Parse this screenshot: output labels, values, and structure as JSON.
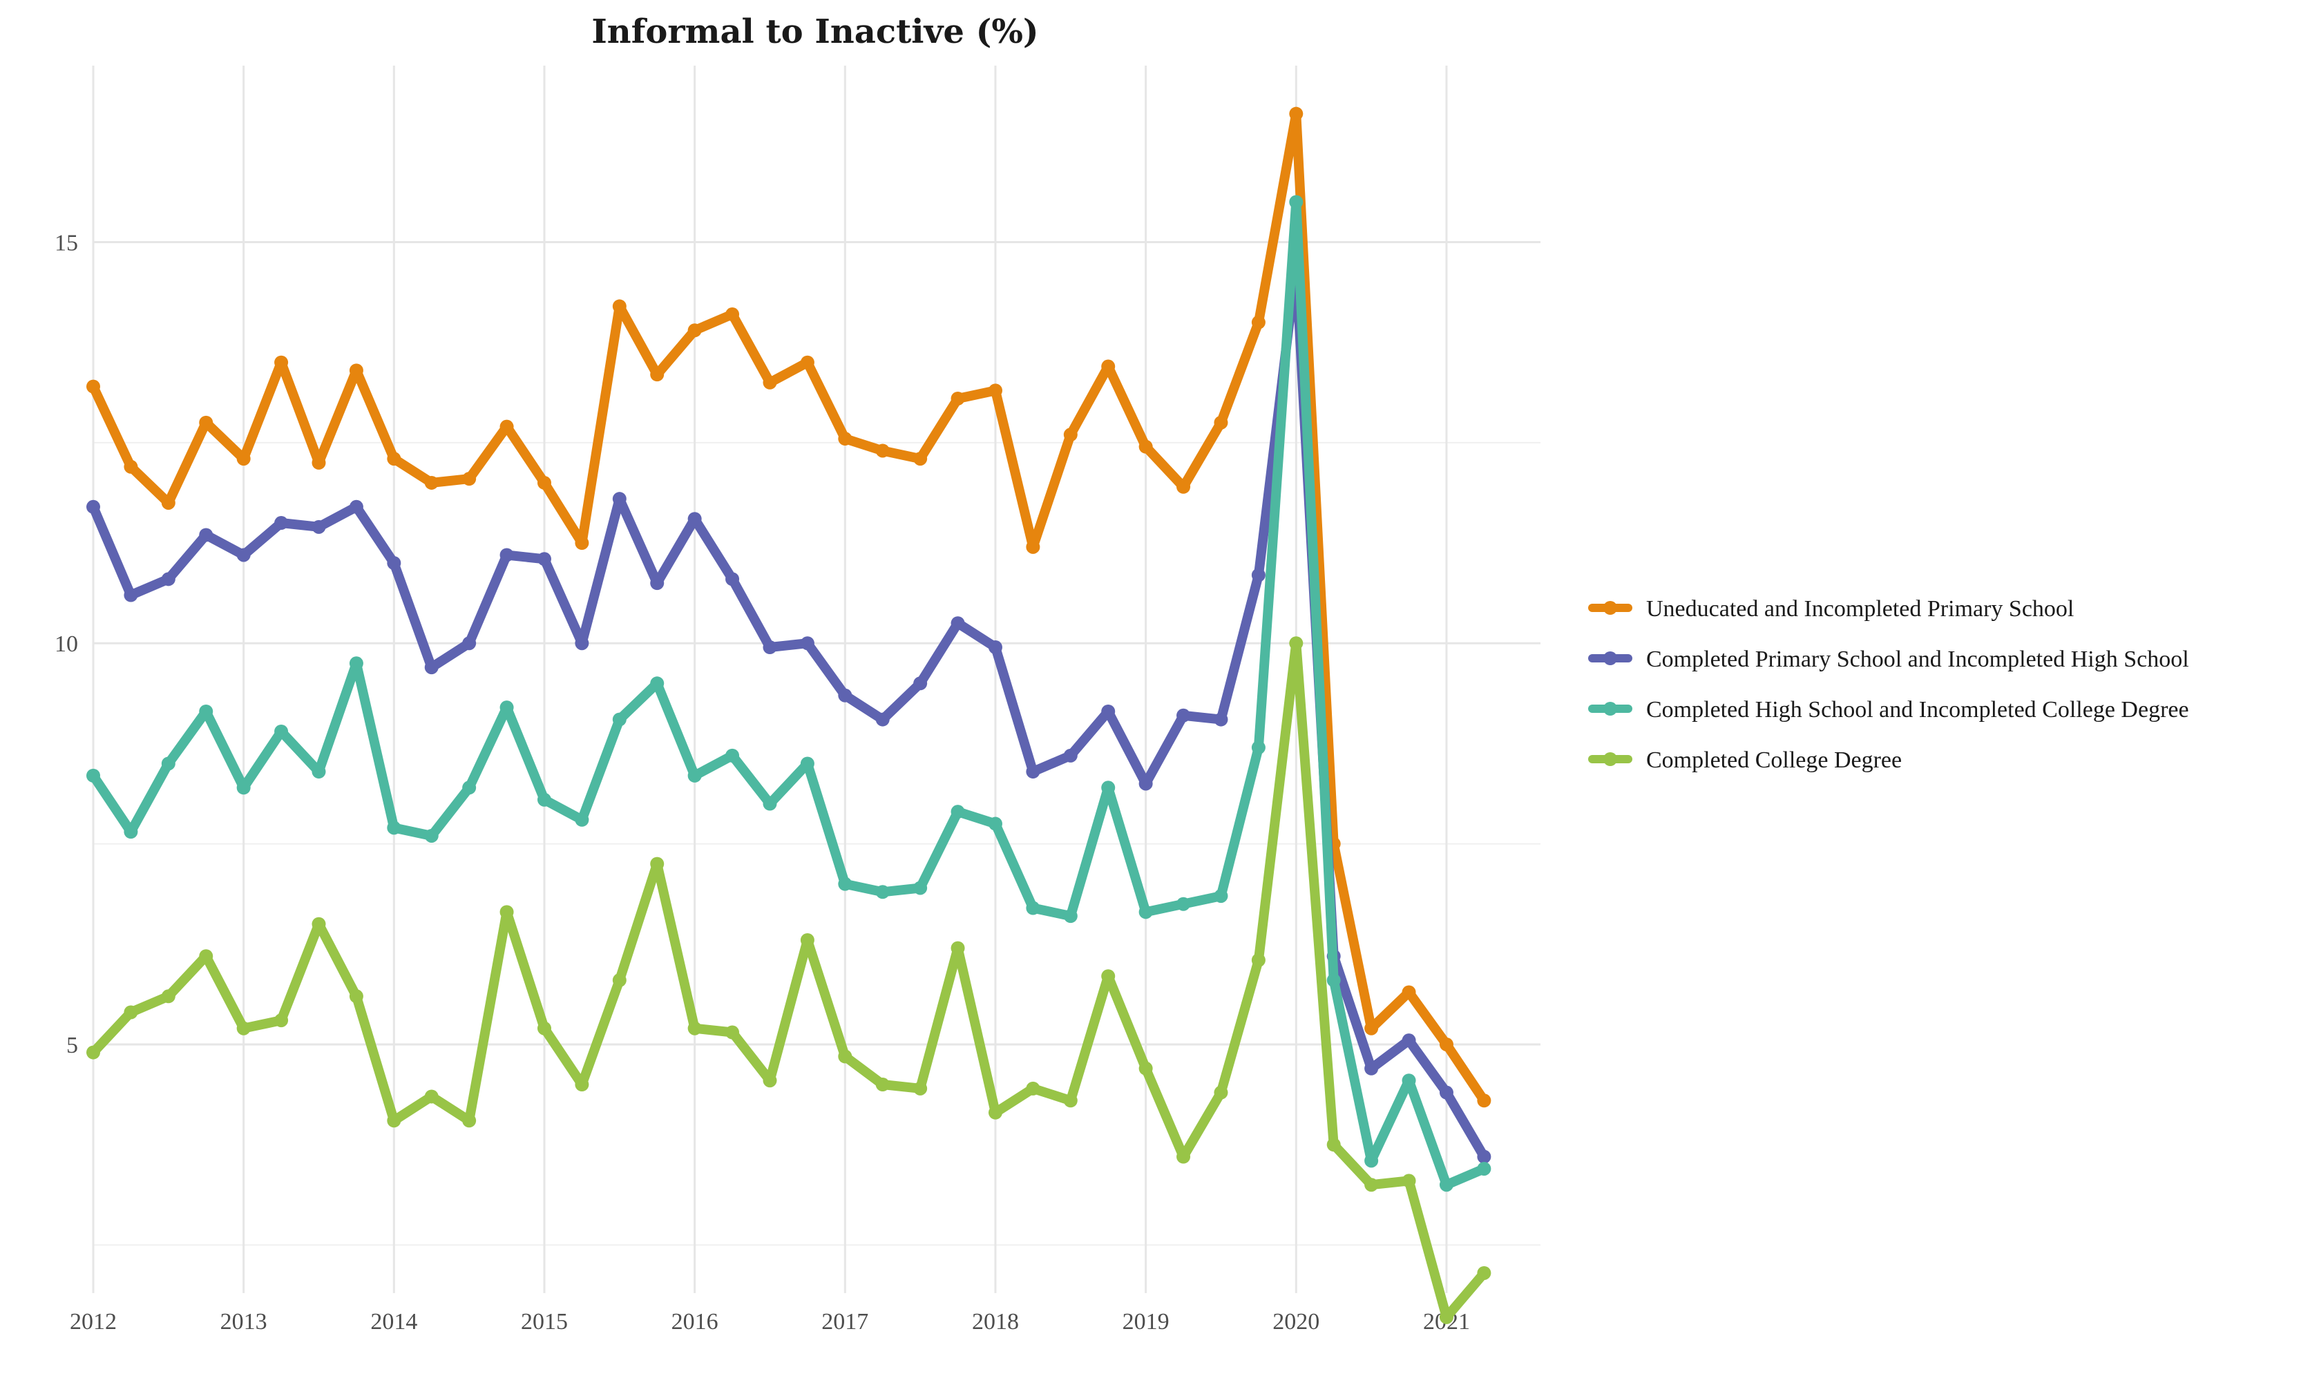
{
  "chart_data": {
    "type": "line",
    "title": "Informal to Inactive (%)",
    "xlabel": "",
    "ylabel": "",
    "x_start_year": 2012,
    "x_step_quarters": 0.25,
    "xlim": [
      2012,
      2021.625
    ],
    "ylim": [
      1.9,
      17.2
    ],
    "x_ticks": [
      "2012",
      "2013",
      "2014",
      "2015",
      "2016",
      "2017",
      "2018",
      "2019",
      "2020",
      "2021"
    ],
    "y_ticks": [
      "5",
      "10",
      "15"
    ],
    "grid": true,
    "legend_position": "right",
    "series": [
      {
        "name": "Uneducated and Incompleted Primary School",
        "color": "#E6850E",
        "values": [
          13.2,
          12.2,
          11.75,
          12.75,
          12.3,
          13.5,
          12.25,
          13.4,
          12.3,
          12.0,
          12.05,
          12.7,
          12.0,
          11.25,
          14.2,
          13.35,
          13.9,
          14.1,
          13.25,
          13.5,
          12.55,
          12.4,
          12.3,
          13.05,
          13.15,
          11.2,
          12.6,
          13.45,
          12.45,
          11.95,
          12.75,
          14.0,
          16.6,
          7.5,
          5.2,
          5.65,
          5.0,
          4.3
        ]
      },
      {
        "name": "Completed Primary School and Incompleted High School",
        "color": "#5E63B0",
        "values": [
          11.7,
          10.6,
          10.8,
          11.35,
          11.1,
          11.5,
          11.45,
          11.7,
          11.0,
          9.7,
          10.0,
          11.1,
          11.05,
          10.0,
          11.8,
          10.75,
          11.55,
          10.8,
          9.95,
          10.0,
          9.35,
          9.05,
          9.5,
          10.25,
          9.95,
          8.4,
          8.6,
          9.15,
          8.25,
          9.1,
          9.05,
          10.85,
          14.7,
          6.1,
          4.7,
          5.05,
          4.4,
          3.6
        ]
      },
      {
        "name": "Completed High School and Incompleted College Degree",
        "color": "#4DB8A0",
        "values": [
          8.35,
          7.65,
          8.5,
          9.15,
          8.2,
          8.9,
          8.4,
          9.75,
          7.7,
          7.6,
          8.2,
          9.2,
          8.05,
          7.8,
          9.05,
          9.5,
          8.35,
          8.6,
          8.0,
          8.5,
          7.0,
          6.9,
          6.95,
          7.9,
          7.75,
          6.7,
          6.6,
          8.2,
          6.65,
          6.75,
          6.85,
          8.7,
          15.5,
          5.8,
          3.55,
          4.55,
          3.25,
          3.45
        ]
      },
      {
        "name": "Completed College Degree",
        "color": "#98C447",
        "values": [
          4.9,
          5.4,
          5.6,
          6.1,
          5.2,
          5.3,
          6.5,
          5.6,
          4.05,
          4.35,
          4.05,
          6.65,
          5.2,
          4.5,
          5.8,
          7.25,
          5.2,
          5.15,
          4.55,
          6.3,
          4.85,
          4.5,
          4.45,
          6.2,
          4.15,
          4.45,
          4.3,
          5.85,
          4.7,
          3.6,
          4.4,
          6.05,
          10.0,
          3.75,
          3.25,
          3.3,
          1.6,
          2.15
        ]
      }
    ]
  }
}
